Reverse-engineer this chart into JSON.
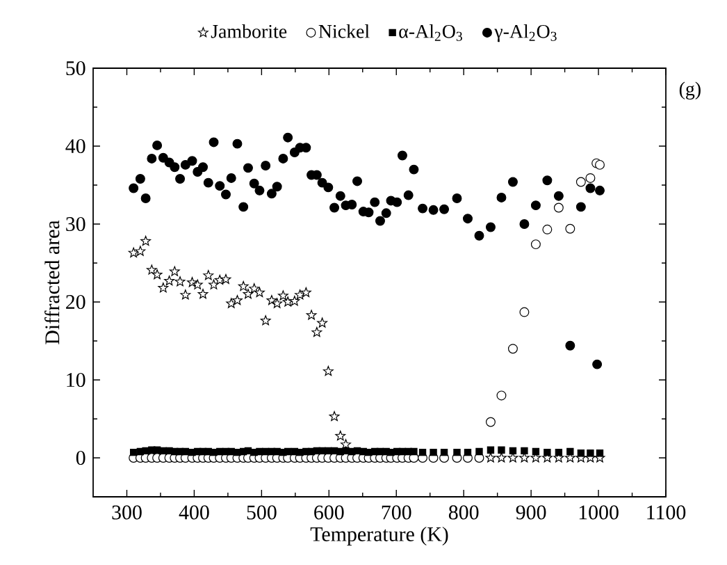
{
  "chart_data": {
    "type": "scatter",
    "xlabel": "Temperature (K)",
    "ylabel": "Diffracted area",
    "xlim": [
      250,
      1100
    ],
    "ylim": [
      -5,
      50
    ],
    "xticks": [
      300,
      400,
      500,
      600,
      700,
      800,
      900,
      1000,
      1100
    ],
    "yticks": [
      0,
      10,
      20,
      30,
      40,
      50
    ],
    "legend": "top",
    "grid": false,
    "annotations": [
      "(g)"
    ],
    "series": [
      {
        "name": "Jamborite",
        "color": "#000000",
        "marker": "star",
        "x": [
          310,
          320,
          328,
          337,
          345,
          354,
          363,
          371,
          379,
          387,
          397,
          405,
          413,
          421,
          429,
          438,
          447,
          455,
          464,
          473,
          480,
          489,
          497,
          506,
          515,
          523,
          532,
          539,
          549,
          557,
          566,
          574,
          582,
          590,
          599,
          608,
          617,
          625,
          840,
          856,
          873,
          890,
          907,
          924,
          941,
          958,
          974,
          988,
          1002
        ],
        "values": [
          26.3,
          26.5,
          27.8,
          24.1,
          23.5,
          21.8,
          22.7,
          23.9,
          22.6,
          20.9,
          22.5,
          22.2,
          21.0,
          23.4,
          22.2,
          22.8,
          22.9,
          19.8,
          20.2,
          22.0,
          21.0,
          21.7,
          21.2,
          17.6,
          20.2,
          19.8,
          20.8,
          20.0,
          20.1,
          20.9,
          21.2,
          18.3,
          16.1,
          17.3,
          11.1,
          5.3,
          2.8,
          1.7,
          0,
          0,
          0,
          0,
          0,
          0,
          0,
          0,
          0,
          0,
          0
        ]
      },
      {
        "name": "Nickel",
        "color": "#000000",
        "marker": "circle-open",
        "x": [
          310,
          320,
          328,
          337,
          345,
          354,
          363,
          371,
          379,
          387,
          397,
          405,
          413,
          421,
          429,
          438,
          447,
          455,
          464,
          473,
          480,
          489,
          497,
          506,
          515,
          523,
          532,
          539,
          549,
          557,
          566,
          574,
          582,
          590,
          599,
          608,
          617,
          625,
          634,
          642,
          651,
          659,
          668,
          676,
          685,
          692,
          701,
          709,
          718,
          726,
          739,
          755,
          771,
          790,
          806,
          823,
          840,
          856,
          873,
          890,
          907,
          924,
          941,
          958,
          974,
          988,
          997,
          1002
        ],
        "values": [
          0,
          0,
          0,
          0,
          0,
          0,
          0,
          0,
          0,
          0,
          0,
          0,
          0,
          0,
          0,
          0,
          0,
          0,
          0,
          0,
          0,
          0,
          0,
          0,
          0,
          0,
          0,
          0,
          0,
          0,
          0,
          0,
          0,
          0,
          0,
          0,
          0,
          0,
          0,
          0,
          0,
          0,
          0,
          0,
          0,
          0,
          0,
          0,
          0,
          0,
          0,
          0,
          0,
          0,
          0,
          0,
          4.6,
          8.0,
          14.0,
          18.7,
          27.4,
          29.3,
          32.1,
          29.4,
          35.4,
          35.9,
          37.8,
          37.6
        ]
      },
      {
        "name": "α-Al$_{2}$O$_{3}$",
        "color": "#000000",
        "marker": "square",
        "x": [
          310,
          320,
          328,
          337,
          345,
          354,
          363,
          371,
          379,
          387,
          397,
          405,
          413,
          421,
          429,
          438,
          447,
          455,
          464,
          473,
          480,
          489,
          497,
          506,
          515,
          523,
          532,
          539,
          549,
          557,
          566,
          574,
          582,
          590,
          599,
          608,
          617,
          625,
          634,
          642,
          651,
          659,
          668,
          676,
          685,
          692,
          701,
          709,
          718,
          726,
          739,
          755,
          771,
          790,
          806,
          823,
          840,
          856,
          873,
          890,
          907,
          924,
          941,
          958,
          974,
          988,
          1002
        ],
        "values": [
          0.7,
          0.8,
          0.9,
          1.0,
          1.0,
          0.9,
          0.9,
          0.8,
          0.8,
          0.8,
          0.7,
          0.8,
          0.8,
          0.8,
          0.7,
          0.8,
          0.8,
          0.8,
          0.7,
          0.8,
          0.9,
          0.7,
          0.8,
          0.8,
          0.8,
          0.8,
          0.7,
          0.8,
          0.8,
          0.7,
          0.8,
          0.8,
          0.9,
          0.9,
          0.9,
          0.9,
          0.8,
          0.9,
          0.8,
          0.9,
          0.8,
          0.7,
          0.8,
          0.8,
          0.8,
          0.7,
          0.8,
          0.8,
          0.8,
          0.8,
          0.7,
          0.7,
          0.7,
          0.7,
          0.7,
          0.8,
          1.0,
          1.0,
          0.9,
          0.9,
          0.8,
          0.7,
          0.7,
          0.8,
          0.6,
          0.6,
          0.6
        ]
      },
      {
        "name": "γ-Al$_{2}$O$_{3}$",
        "color": "#000000",
        "marker": "circle",
        "x": [
          310,
          320,
          328,
          337,
          345,
          354,
          363,
          371,
          379,
          387,
          397,
          405,
          413,
          421,
          429,
          438,
          447,
          455,
          464,
          473,
          480,
          489,
          497,
          506,
          515,
          523,
          532,
          539,
          549,
          557,
          566,
          574,
          582,
          590,
          599,
          608,
          617,
          625,
          634,
          642,
          651,
          659,
          668,
          676,
          685,
          692,
          701,
          709,
          718,
          726,
          739,
          755,
          771,
          790,
          806,
          823,
          840,
          856,
          873,
          890,
          907,
          924,
          941,
          958,
          974,
          988,
          998,
          1002
        ],
        "values": [
          34.6,
          35.8,
          33.3,
          38.4,
          40.1,
          38.5,
          37.9,
          37.3,
          35.8,
          37.6,
          38.1,
          36.7,
          37.3,
          35.3,
          40.5,
          34.9,
          33.8,
          35.9,
          40.3,
          32.2,
          37.2,
          35.2,
          34.3,
          37.5,
          33.9,
          34.8,
          38.4,
          41.1,
          39.2,
          39.8,
          39.8,
          36.3,
          36.3,
          35.3,
          34.7,
          32.1,
          33.6,
          32.4,
          32.5,
          35.5,
          31.6,
          31.5,
          32.8,
          30.4,
          31.4,
          33.0,
          32.8,
          38.8,
          33.7,
          37.0,
          32.0,
          31.8,
          31.9,
          33.3,
          30.7,
          28.5,
          29.6,
          33.4,
          35.4,
          30.0,
          32.4,
          35.6,
          33.6,
          14.4,
          32.2,
          34.6,
          12.0,
          34.3
        ]
      }
    ]
  }
}
